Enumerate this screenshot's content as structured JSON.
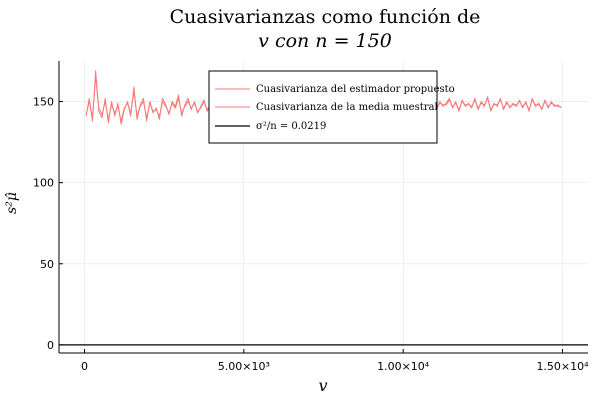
{
  "chart_data": {
    "type": "line",
    "title": [
      "Cuasivarianzas como función de",
      "v con n = 150"
    ],
    "xlabel": "v",
    "ylabel": "s²μ̂",
    "xlim": [
      -800,
      15800
    ],
    "ylim": [
      -5,
      175
    ],
    "x_ticks": [
      {
        "value": 0,
        "label": "0"
      },
      {
        "value": 5000,
        "label": "5.00×10³"
      },
      {
        "value": 10000,
        "label": "1.00×10⁴"
      },
      {
        "value": 15000,
        "label": "1.50×10⁴"
      }
    ],
    "y_ticks": [
      {
        "value": 0,
        "label": "0"
      },
      {
        "value": 50,
        "label": "50"
      },
      {
        "value": 100,
        "label": "100"
      },
      {
        "value": 150,
        "label": "150"
      }
    ],
    "grid": true,
    "legend_position": "top-center",
    "series": [
      {
        "name": "Cuasivarianza del estimador propuesto",
        "color": "#f87a7a",
        "x_start": 50,
        "x_step": 100,
        "values": [
          141,
          152,
          138,
          169,
          144,
          140,
          152,
          137,
          150,
          141,
          149,
          136,
          145,
          150,
          141,
          159,
          139,
          148,
          152,
          138,
          150,
          143,
          146,
          139,
          152,
          148,
          142,
          150,
          147,
          154,
          141,
          148,
          152,
          145,
          150,
          143,
          147,
          151,
          144,
          149,
          146,
          150,
          143,
          148,
          151,
          145,
          149,
          147,
          150,
          146,
          149,
          148,
          150,
          147,
          149,
          148,
          151,
          147,
          149,
          148,
          150,
          147,
          149,
          148,
          150,
          147,
          149,
          148,
          150,
          147,
          149,
          148,
          150,
          147,
          149,
          148,
          150,
          147,
          149,
          148,
          150,
          147,
          149,
          148,
          150,
          147,
          149,
          148,
          150,
          147,
          149,
          148,
          150,
          147,
          149,
          148,
          150,
          147,
          149,
          148,
          151,
          145,
          149,
          147,
          152,
          144,
          150,
          146,
          149,
          153,
          145,
          150,
          147,
          149,
          152,
          146,
          150,
          144,
          151,
          147,
          149,
          146,
          152,
          145,
          150,
          147,
          153,
          144,
          149,
          147,
          152,
          145,
          150,
          146,
          149,
          147,
          151,
          146,
          150,
          144,
          152,
          147,
          149,
          145,
          151,
          146,
          150,
          147,
          148,
          146
        ]
      },
      {
        "name": "Cuasivarianza de la media muestral",
        "color": "#f87a7a",
        "x_start": 50,
        "x_step": 100,
        "values": [
          142,
          150,
          140,
          165,
          146,
          142,
          150,
          139,
          148,
          143,
          147,
          138,
          146,
          149,
          143,
          156,
          141,
          147,
          150,
          140,
          149,
          144,
          145,
          141,
          150,
          147,
          143,
          149,
          146,
          152,
          143,
          147,
          150,
          146,
          149,
          144,
          146,
          150,
          145,
          148,
          147,
          149,
          144,
          147,
          150,
          146,
          148,
          148,
          149,
          147,
          148,
          149,
          149,
          148,
          148,
          149,
          150,
          148,
          148,
          149,
          149,
          148,
          148,
          149,
          149,
          148,
          148,
          149,
          149,
          148,
          148,
          149,
          149,
          148,
          148,
          149,
          149,
          148,
          148,
          149,
          149,
          148,
          148,
          149,
          149,
          148,
          148,
          149,
          149,
          148,
          148,
          149,
          149,
          148,
          148,
          149,
          149,
          148,
          148,
          149,
          150,
          146,
          148,
          148,
          151,
          145,
          149,
          147,
          148,
          152,
          146,
          149,
          148,
          148,
          151,
          147,
          149,
          145,
          150,
          148,
          148,
          147,
          151,
          146,
          149,
          148,
          152,
          145,
          148,
          148,
          151,
          146,
          149,
          147,
          148,
          148,
          150,
          147,
          149,
          145,
          151,
          148,
          148,
          146,
          150,
          147,
          149,
          148,
          147,
          147
        ]
      },
      {
        "name": "σ²/n = 0.0219",
        "color": "#000000",
        "constant": 0.0219
      }
    ]
  }
}
